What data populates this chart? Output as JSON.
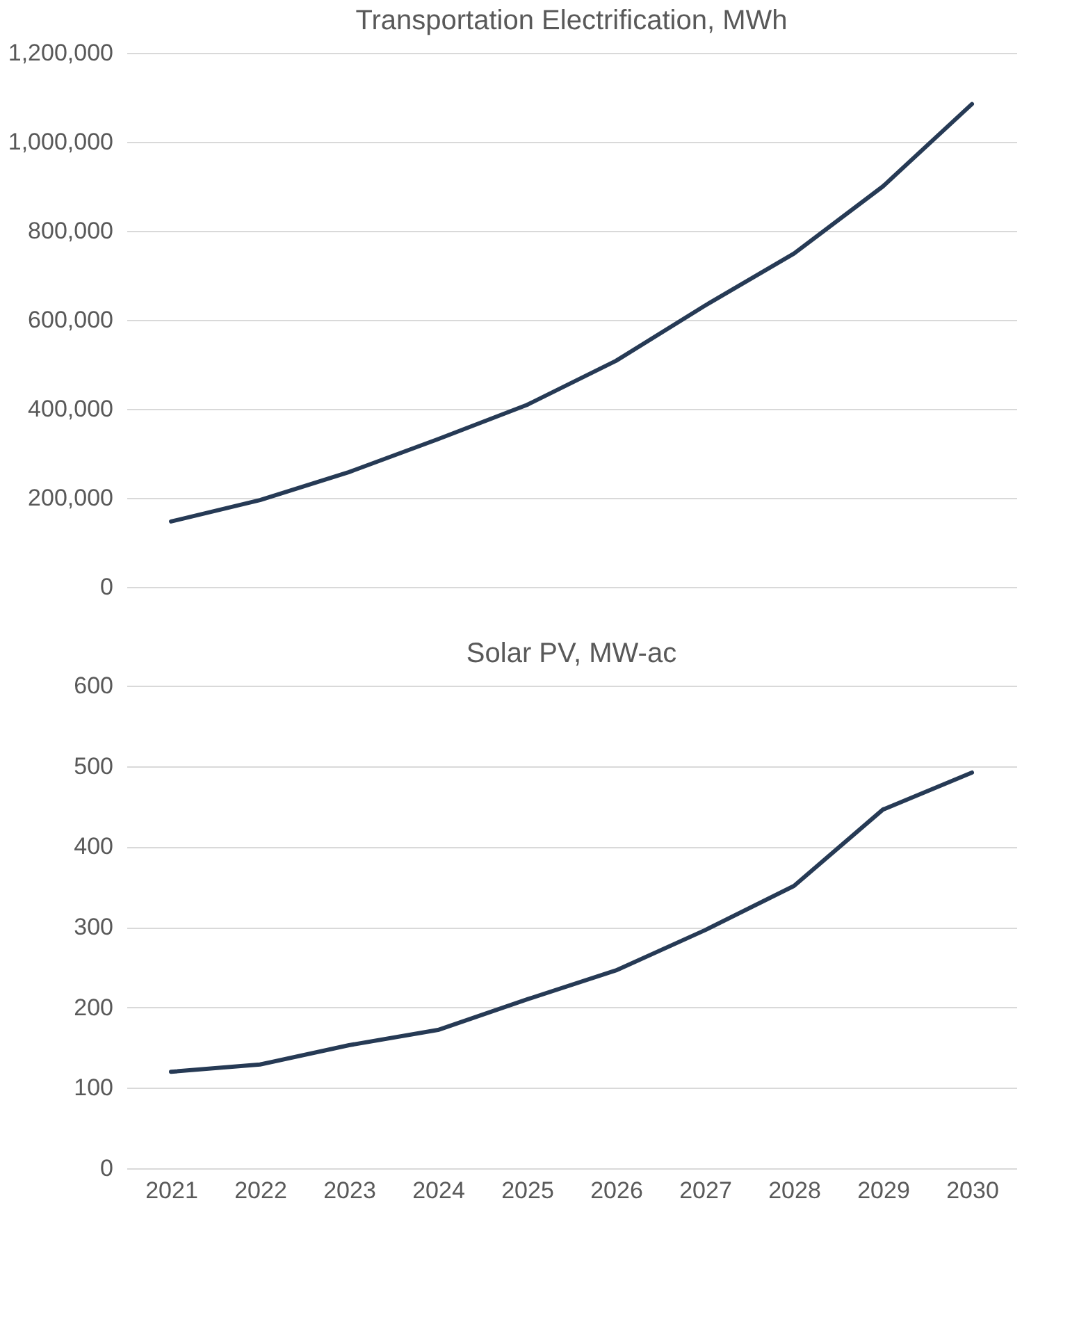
{
  "chart_data": [
    {
      "type": "line",
      "title": "Transportation Electrification, MWh",
      "categories": [
        "2021",
        "2022",
        "2023",
        "2024",
        "2025",
        "2026",
        "2027",
        "2028",
        "2029",
        "2030"
      ],
      "series": [
        {
          "color": "#263a55",
          "values": [
            147000,
            195000,
            258000,
            332000,
            409000,
            508000,
            632000,
            749000,
            900000,
            1085000
          ]
        }
      ],
      "ylim": [
        0,
        1200000
      ],
      "yticks": [
        0,
        {
          "value": 200000,
          "label": "200,000"
        },
        {
          "value": 400000,
          "label": "400,000"
        },
        {
          "value": 600000,
          "label": "600,000"
        },
        {
          "value": 800000,
          "label": "800,000"
        },
        {
          "value": 1000000,
          "label": "1,000,000"
        },
        {
          "value": 1200000,
          "label": "1,200,000"
        }
      ],
      "grid": "y",
      "tick_labels": "y",
      "line_style": "solid"
    },
    {
      "type": "line",
      "title": "Solar PV, MW-ac",
      "categories": [
        "2021",
        "2022",
        "2023",
        "2024",
        "2025",
        "2026",
        "2027",
        "2028",
        "2029",
        "2030"
      ],
      "series": [
        {
          "color": "#263a55",
          "values": [
            120,
            129,
            153,
            172,
            210,
            246,
            296,
            351,
            446,
            492
          ]
        }
      ],
      "ylim": [
        0,
        600
      ],
      "yticks": [
        0,
        100,
        200,
        300,
        400,
        500,
        600
      ],
      "grid": "y",
      "line_style": "solid"
    }
  ]
}
